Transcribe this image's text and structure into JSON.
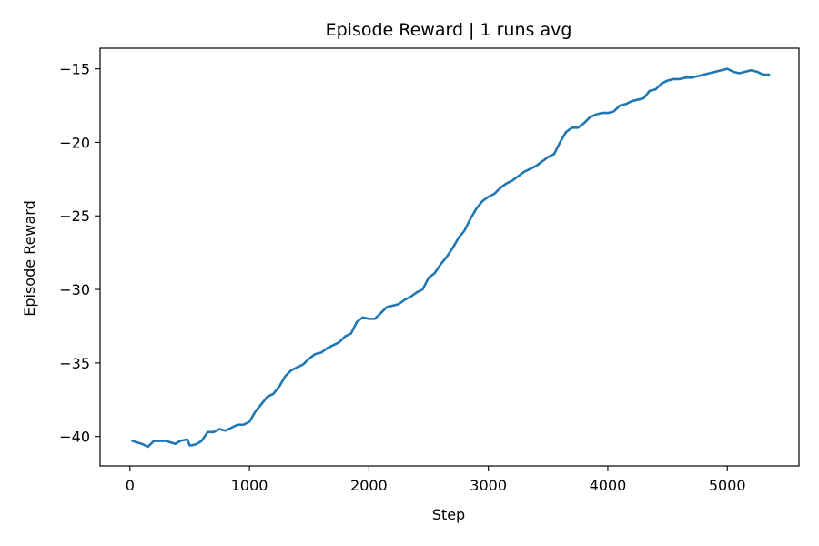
{
  "chart_data": {
    "type": "line",
    "title": "Episode Reward | 1 runs avg",
    "xlabel": "Step",
    "ylabel": "Episode Reward",
    "xlim": [
      -250,
      5600
    ],
    "ylim": [
      -42,
      -13.6
    ],
    "x_ticks": [
      0,
      1000,
      2000,
      3000,
      4000,
      5000
    ],
    "x_tick_labels": [
      "0",
      "1000",
      "2000",
      "3000",
      "4000",
      "5000"
    ],
    "y_ticks": [
      -40,
      -35,
      -30,
      -25,
      -20,
      -15
    ],
    "y_tick_labels": [
      "−40",
      "−35",
      "−30",
      "−25",
      "−20",
      "−15"
    ],
    "grid": false,
    "series": [
      {
        "color": "#1f77b4",
        "x": [
          20,
          100,
          150,
          200,
          300,
          380,
          420,
          480,
          500,
          520,
          560,
          600,
          650,
          700,
          750,
          800,
          850,
          900,
          950,
          1000,
          1050,
          1100,
          1150,
          1200,
          1250,
          1300,
          1350,
          1400,
          1450,
          1500,
          1550,
          1600,
          1650,
          1700,
          1750,
          1800,
          1850,
          1900,
          1950,
          2000,
          2050,
          2100,
          2150,
          2200,
          2250,
          2300,
          2350,
          2400,
          2450,
          2500,
          2550,
          2600,
          2650,
          2700,
          2750,
          2800,
          2850,
          2900,
          2950,
          3000,
          3050,
          3100,
          3150,
          3200,
          3250,
          3300,
          3350,
          3400,
          3450,
          3500,
          3550,
          3600,
          3650,
          3700,
          3750,
          3800,
          3850,
          3900,
          3950,
          4000,
          4050,
          4100,
          4150,
          4200,
          4250,
          4300,
          4350,
          4400,
          4450,
          4500,
          4550,
          4600,
          4650,
          4700,
          4750,
          4800,
          4850,
          4900,
          4950,
          5000,
          5050,
          5100,
          5150,
          5200,
          5250,
          5300,
          5350
        ],
        "y": [
          -40.3,
          -40.5,
          -40.7,
          -40.3,
          -40.3,
          -40.5,
          -40.3,
          -40.2,
          -40.6,
          -40.6,
          -40.5,
          -40.3,
          -39.7,
          -39.7,
          -39.5,
          -39.6,
          -39.4,
          -39.2,
          -39.2,
          -39.0,
          -38.3,
          -37.8,
          -37.3,
          -37.1,
          -36.6,
          -35.9,
          -35.5,
          -35.3,
          -35.1,
          -34.7,
          -34.4,
          -34.3,
          -34.0,
          -33.8,
          -33.6,
          -33.2,
          -33.0,
          -32.2,
          -31.9,
          -32.0,
          -32.0,
          -31.6,
          -31.2,
          -31.1,
          -31.0,
          -30.7,
          -30.5,
          -30.2,
          -30.0,
          -29.2,
          -28.9,
          -28.3,
          -27.8,
          -27.2,
          -26.5,
          -26.0,
          -25.2,
          -24.5,
          -24.0,
          -23.7,
          -23.5,
          -23.1,
          -22.8,
          -22.6,
          -22.3,
          -22.0,
          -21.8,
          -21.6,
          -21.3,
          -21.0,
          -20.8,
          -20.0,
          -19.3,
          -19.0,
          -19.0,
          -18.7,
          -18.3,
          -18.1,
          -18.0,
          -18.0,
          -17.9,
          -17.5,
          -17.4,
          -17.2,
          -17.1,
          -17.0,
          -16.5,
          -16.4,
          -16.0,
          -15.8,
          -15.7,
          -15.7,
          -15.6,
          -15.6,
          -15.5,
          -15.4,
          -15.3,
          -15.2,
          -15.1,
          -15.0,
          -15.2,
          -15.3,
          -15.2,
          -15.1,
          -15.2,
          -15.4,
          -15.4
        ]
      }
    ]
  }
}
